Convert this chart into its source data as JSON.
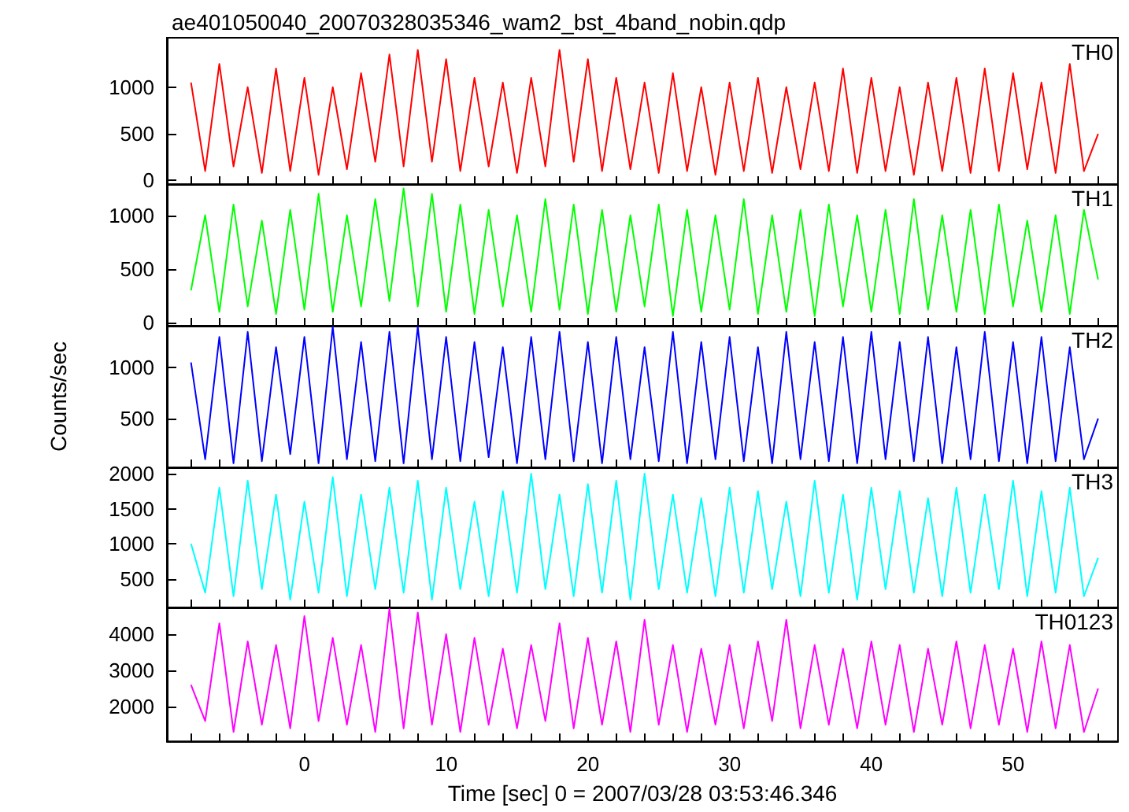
{
  "chart_data": [
    {
      "type": "line",
      "title": "ae401050040_20070328035346_wam2_bst_4band_nobin.qdp",
      "x": [
        -8,
        -7,
        -6,
        -5,
        -4,
        -3,
        -2,
        -1,
        0,
        1,
        2,
        3,
        4,
        5,
        6,
        7,
        8,
        9,
        10,
        11,
        12,
        13,
        14,
        15,
        16,
        17,
        18,
        19,
        20,
        21,
        22,
        23,
        24,
        25,
        26,
        27,
        28,
        29,
        30,
        31,
        32,
        33,
        34,
        35,
        36,
        37,
        38,
        39,
        40,
        41,
        42,
        43,
        44,
        45,
        46,
        47,
        48,
        49,
        50,
        51,
        52,
        53,
        54,
        55,
        56
      ],
      "xlim": [
        -9.7,
        57.4
      ],
      "xticks": [
        {
          "value": -8,
          "label": null
        },
        {
          "value": -6,
          "label": null
        },
        {
          "value": -4,
          "label": null
        },
        {
          "value": -2,
          "label": null
        },
        0,
        {
          "value": 2,
          "label": null
        },
        {
          "value": 4,
          "label": null
        },
        {
          "value": 6,
          "label": null
        },
        {
          "value": 8,
          "label": null
        },
        10,
        {
          "value": 12,
          "label": null
        },
        {
          "value": 14,
          "label": null
        },
        {
          "value": 16,
          "label": null
        },
        {
          "value": 18,
          "label": null
        },
        20,
        {
          "value": 22,
          "label": null
        },
        {
          "value": 24,
          "label": null
        },
        {
          "value": 26,
          "label": null
        },
        {
          "value": 28,
          "label": null
        },
        30,
        {
          "value": 32,
          "label": null
        },
        {
          "value": 34,
          "label": null
        },
        {
          "value": 36,
          "label": null
        },
        {
          "value": 38,
          "label": null
        },
        40,
        {
          "value": 42,
          "label": null
        },
        {
          "value": 44,
          "label": null
        },
        {
          "value": 46,
          "label": null
        },
        {
          "value": 48,
          "label": null
        },
        50,
        {
          "value": 52,
          "label": null
        },
        {
          "value": 54,
          "label": null
        },
        {
          "value": 56,
          "label": null
        }
      ],
      "ylim": [
        -40,
        1530
      ],
      "yticks": [
        0,
        500,
        1000
      ],
      "tick_labels": "y",
      "series": [
        {
          "name": "TH0",
          "color": "#ff0000",
          "values": [
            1050,
            100,
            1250,
            150,
            1000,
            80,
            1200,
            100,
            1100,
            60,
            1000,
            120,
            1150,
            200,
            1350,
            150,
            1400,
            200,
            1300,
            100,
            1100,
            150,
            1050,
            80,
            1100,
            150,
            1400,
            200,
            1300,
            100,
            1100,
            120,
            1050,
            80,
            1150,
            100,
            1000,
            60,
            1050,
            100,
            1100,
            80,
            1000,
            120,
            1050,
            100,
            1200,
            80,
            1100,
            100,
            1000,
            60,
            1050,
            100,
            1100,
            80,
            1200,
            100,
            1150,
            120,
            1050,
            80,
            1250,
            100,
            500
          ]
        }
      ]
    },
    {
      "type": "line",
      "x": [
        -8,
        -7,
        -6,
        -5,
        -4,
        -3,
        -2,
        -1,
        0,
        1,
        2,
        3,
        4,
        5,
        6,
        7,
        8,
        9,
        10,
        11,
        12,
        13,
        14,
        15,
        16,
        17,
        18,
        19,
        20,
        21,
        22,
        23,
        24,
        25,
        26,
        27,
        28,
        29,
        30,
        31,
        32,
        33,
        34,
        35,
        36,
        37,
        38,
        39,
        40,
        41,
        42,
        43,
        44,
        45,
        46,
        47,
        48,
        49,
        50,
        51,
        52,
        53,
        54,
        55,
        56
      ],
      "xlim": [
        -9.7,
        57.4
      ],
      "xticks": [
        {
          "value": -8,
          "label": null
        },
        {
          "value": -6,
          "label": null
        },
        {
          "value": -4,
          "label": null
        },
        {
          "value": -2,
          "label": null
        },
        0,
        {
          "value": 2,
          "label": null
        },
        {
          "value": 4,
          "label": null
        },
        {
          "value": 6,
          "label": null
        },
        {
          "value": 8,
          "label": null
        },
        10,
        {
          "value": 12,
          "label": null
        },
        {
          "value": 14,
          "label": null
        },
        {
          "value": 16,
          "label": null
        },
        {
          "value": 18,
          "label": null
        },
        20,
        {
          "value": 22,
          "label": null
        },
        {
          "value": 24,
          "label": null
        },
        {
          "value": 26,
          "label": null
        },
        {
          "value": 28,
          "label": null
        },
        30,
        {
          "value": 32,
          "label": null
        },
        {
          "value": 34,
          "label": null
        },
        {
          "value": 36,
          "label": null
        },
        {
          "value": 38,
          "label": null
        },
        40,
        {
          "value": 42,
          "label": null
        },
        {
          "value": 44,
          "label": null
        },
        {
          "value": 46,
          "label": null
        },
        {
          "value": 48,
          "label": null
        },
        50,
        {
          "value": 52,
          "label": null
        },
        {
          "value": 54,
          "label": null
        },
        {
          "value": 56,
          "label": null
        }
      ],
      "ylim": [
        -30,
        1290
      ],
      "yticks": [
        0,
        500,
        1000
      ],
      "tick_labels": "y",
      "series": [
        {
          "name": "TH1",
          "color": "#00ff00",
          "values": [
            300,
            1000,
            100,
            1100,
            150,
            950,
            80,
            1050,
            120,
            1200,
            100,
            1000,
            150,
            1150,
            200,
            1250,
            150,
            1200,
            100,
            1100,
            80,
            1050,
            150,
            1000,
            100,
            1150,
            120,
            1100,
            80,
            1050,
            100,
            1000,
            150,
            1100,
            60,
            1050,
            100,
            1000,
            120,
            1150,
            80,
            1000,
            100,
            1050,
            60,
            1100,
            150,
            1000,
            100,
            1050,
            80,
            1150,
            120,
            1000,
            100,
            1050,
            80,
            1100,
            150,
            950,
            100,
            1000,
            80,
            1050,
            400
          ]
        }
      ]
    },
    {
      "type": "line",
      "ylabel": "Counts/sec",
      "x": [
        -8,
        -7,
        -6,
        -5,
        -4,
        -3,
        -2,
        -1,
        0,
        1,
        2,
        3,
        4,
        5,
        6,
        7,
        8,
        9,
        10,
        11,
        12,
        13,
        14,
        15,
        16,
        17,
        18,
        19,
        20,
        21,
        22,
        23,
        24,
        25,
        26,
        27,
        28,
        29,
        30,
        31,
        32,
        33,
        34,
        35,
        36,
        37,
        38,
        39,
        40,
        41,
        42,
        43,
        44,
        45,
        46,
        47,
        48,
        49,
        50,
        51,
        52,
        53,
        54,
        55,
        56
      ],
      "xlim": [
        -9.7,
        57.4
      ],
      "xticks": [
        {
          "value": -8,
          "label": null
        },
        {
          "value": -6,
          "label": null
        },
        {
          "value": -4,
          "label": null
        },
        {
          "value": -2,
          "label": null
        },
        0,
        {
          "value": 2,
          "label": null
        },
        {
          "value": 4,
          "label": null
        },
        {
          "value": 6,
          "label": null
        },
        {
          "value": 8,
          "label": null
        },
        10,
        {
          "value": 12,
          "label": null
        },
        {
          "value": 14,
          "label": null
        },
        {
          "value": 16,
          "label": null
        },
        {
          "value": 18,
          "label": null
        },
        20,
        {
          "value": 22,
          "label": null
        },
        {
          "value": 24,
          "label": null
        },
        {
          "value": 26,
          "label": null
        },
        {
          "value": 28,
          "label": null
        },
        30,
        {
          "value": 32,
          "label": null
        },
        {
          "value": 34,
          "label": null
        },
        {
          "value": 36,
          "label": null
        },
        {
          "value": 38,
          "label": null
        },
        40,
        {
          "value": 42,
          "label": null
        },
        {
          "value": 44,
          "label": null
        },
        {
          "value": 46,
          "label": null
        },
        {
          "value": 48,
          "label": null
        },
        50,
        {
          "value": 52,
          "label": null
        },
        {
          "value": 54,
          "label": null
        },
        {
          "value": 56,
          "label": null
        }
      ],
      "ylim": [
        20,
        1410
      ],
      "yticks": [
        500,
        1000
      ],
      "tick_labels": "y",
      "series": [
        {
          "name": "TH2",
          "color": "#0000ff",
          "values": [
            1050,
            100,
            1300,
            60,
            1350,
            80,
            1200,
            150,
            1300,
            60,
            1400,
            100,
            1250,
            80,
            1350,
            60,
            1400,
            100,
            1300,
            80,
            1250,
            120,
            1200,
            60,
            1300,
            100,
            1350,
            80,
            1250,
            60,
            1300,
            100,
            1200,
            80,
            1350,
            60,
            1250,
            100,
            1300,
            80,
            1200,
            60,
            1350,
            100,
            1250,
            80,
            1300,
            60,
            1350,
            100,
            1250,
            80,
            1300,
            60,
            1200,
            100,
            1350,
            80,
            1250,
            60,
            1300,
            80,
            1200,
            100,
            500
          ]
        }
      ]
    },
    {
      "type": "line",
      "x": [
        -8,
        -7,
        -6,
        -5,
        -4,
        -3,
        -2,
        -1,
        0,
        1,
        2,
        3,
        4,
        5,
        6,
        7,
        8,
        9,
        10,
        11,
        12,
        13,
        14,
        15,
        16,
        17,
        18,
        19,
        20,
        21,
        22,
        23,
        24,
        25,
        26,
        27,
        28,
        29,
        30,
        31,
        32,
        33,
        34,
        35,
        36,
        37,
        38,
        39,
        40,
        41,
        42,
        43,
        44,
        45,
        46,
        47,
        48,
        49,
        50,
        51,
        52,
        53,
        54,
        55,
        56
      ],
      "xlim": [
        -9.7,
        57.4
      ],
      "xticks": [
        {
          "value": -8,
          "label": null
        },
        {
          "value": -6,
          "label": null
        },
        {
          "value": -4,
          "label": null
        },
        {
          "value": -2,
          "label": null
        },
        0,
        {
          "value": 2,
          "label": null
        },
        {
          "value": 4,
          "label": null
        },
        {
          "value": 6,
          "label": null
        },
        {
          "value": 8,
          "label": null
        },
        10,
        {
          "value": 12,
          "label": null
        },
        {
          "value": 14,
          "label": null
        },
        {
          "value": 16,
          "label": null
        },
        {
          "value": 18,
          "label": null
        },
        20,
        {
          "value": 22,
          "label": null
        },
        {
          "value": 24,
          "label": null
        },
        {
          "value": 26,
          "label": null
        },
        {
          "value": 28,
          "label": null
        },
        30,
        {
          "value": 32,
          "label": null
        },
        {
          "value": 34,
          "label": null
        },
        {
          "value": 36,
          "label": null
        },
        {
          "value": 38,
          "label": null
        },
        40,
        {
          "value": 42,
          "label": null
        },
        {
          "value": 44,
          "label": null
        },
        {
          "value": 46,
          "label": null
        },
        {
          "value": 48,
          "label": null
        },
        50,
        {
          "value": 52,
          "label": null
        },
        {
          "value": 54,
          "label": null
        },
        {
          "value": 56,
          "label": null
        }
      ],
      "ylim": [
        90,
        2090
      ],
      "yticks": [
        500,
        1000,
        1500,
        2000
      ],
      "tick_labels": "y",
      "series": [
        {
          "name": "TH3",
          "color": "#00ffff",
          "values": [
            1000,
            300,
            1800,
            250,
            1900,
            350,
            1700,
            200,
            1600,
            300,
            1950,
            250,
            1700,
            350,
            1800,
            300,
            1900,
            200,
            1800,
            350,
            1600,
            250,
            1750,
            300,
            2000,
            350,
            1700,
            250,
            1850,
            300,
            1900,
            200,
            2000,
            350,
            1700,
            300,
            1650,
            250,
            1800,
            300,
            1750,
            350,
            1600,
            250,
            1900,
            300,
            1700,
            200,
            1800,
            350,
            1750,
            300,
            1650,
            250,
            1800,
            300,
            1700,
            350,
            1900,
            250,
            1750,
            300,
            1800,
            250,
            800
          ]
        }
      ]
    },
    {
      "type": "line",
      "xlabel": "Time [sec] 0 = 2007/03/28 03:53:46.346",
      "x": [
        -8,
        -7,
        -6,
        -5,
        -4,
        -3,
        -2,
        -1,
        0,
        1,
        2,
        3,
        4,
        5,
        6,
        7,
        8,
        9,
        10,
        11,
        12,
        13,
        14,
        15,
        16,
        17,
        18,
        19,
        20,
        21,
        22,
        23,
        24,
        25,
        26,
        27,
        28,
        29,
        30,
        31,
        32,
        33,
        34,
        35,
        36,
        37,
        38,
        39,
        40,
        41,
        42,
        43,
        44,
        45,
        46,
        47,
        48,
        49,
        50,
        51,
        52,
        53,
        54,
        55,
        56
      ],
      "xlim": [
        -9.7,
        57.4
      ],
      "xticks": [
        {
          "value": -8,
          "label": null
        },
        {
          "value": -6,
          "label": null
        },
        {
          "value": -4,
          "label": null
        },
        {
          "value": -2,
          "label": null
        },
        0,
        {
          "value": 2,
          "label": null
        },
        {
          "value": 4,
          "label": null
        },
        {
          "value": 6,
          "label": null
        },
        {
          "value": 8,
          "label": null
        },
        10,
        {
          "value": 12,
          "label": null
        },
        {
          "value": 14,
          "label": null
        },
        {
          "value": 16,
          "label": null
        },
        {
          "value": 18,
          "label": null
        },
        20,
        {
          "value": 22,
          "label": null
        },
        {
          "value": 24,
          "label": null
        },
        {
          "value": 26,
          "label": null
        },
        {
          "value": 28,
          "label": null
        },
        30,
        {
          "value": 32,
          "label": null
        },
        {
          "value": 34,
          "label": null
        },
        {
          "value": 36,
          "label": null
        },
        {
          "value": 38,
          "label": null
        },
        40,
        {
          "value": 42,
          "label": null
        },
        {
          "value": 44,
          "label": null
        },
        {
          "value": 46,
          "label": null
        },
        {
          "value": 48,
          "label": null
        },
        50,
        {
          "value": 52,
          "label": null
        },
        {
          "value": 54,
          "label": null
        },
        {
          "value": 56,
          "label": null
        }
      ],
      "ylim": [
        1040,
        4740
      ],
      "yticks": [
        2000,
        3000,
        4000
      ],
      "series": [
        {
          "name": "TH0123",
          "color": "#ff00ff",
          "values": [
            2600,
            1600,
            4300,
            1300,
            3800,
            1500,
            3700,
            1400,
            4500,
            1600,
            3900,
            1500,
            3700,
            1300,
            4700,
            1400,
            4600,
            1500,
            4000,
            1300,
            3900,
            1500,
            3600,
            1400,
            3700,
            1600,
            4300,
            1400,
            3900,
            1500,
            3800,
            1300,
            4400,
            1500,
            3700,
            1300,
            3600,
            1500,
            3700,
            1400,
            3800,
            1600,
            4400,
            1400,
            3700,
            1500,
            3600,
            1400,
            3800,
            1500,
            3700,
            1300,
            3600,
            1500,
            3800,
            1400,
            3700,
            1500,
            3600,
            1300,
            3800,
            1400,
            3700,
            1300,
            2500
          ]
        }
      ]
    }
  ]
}
